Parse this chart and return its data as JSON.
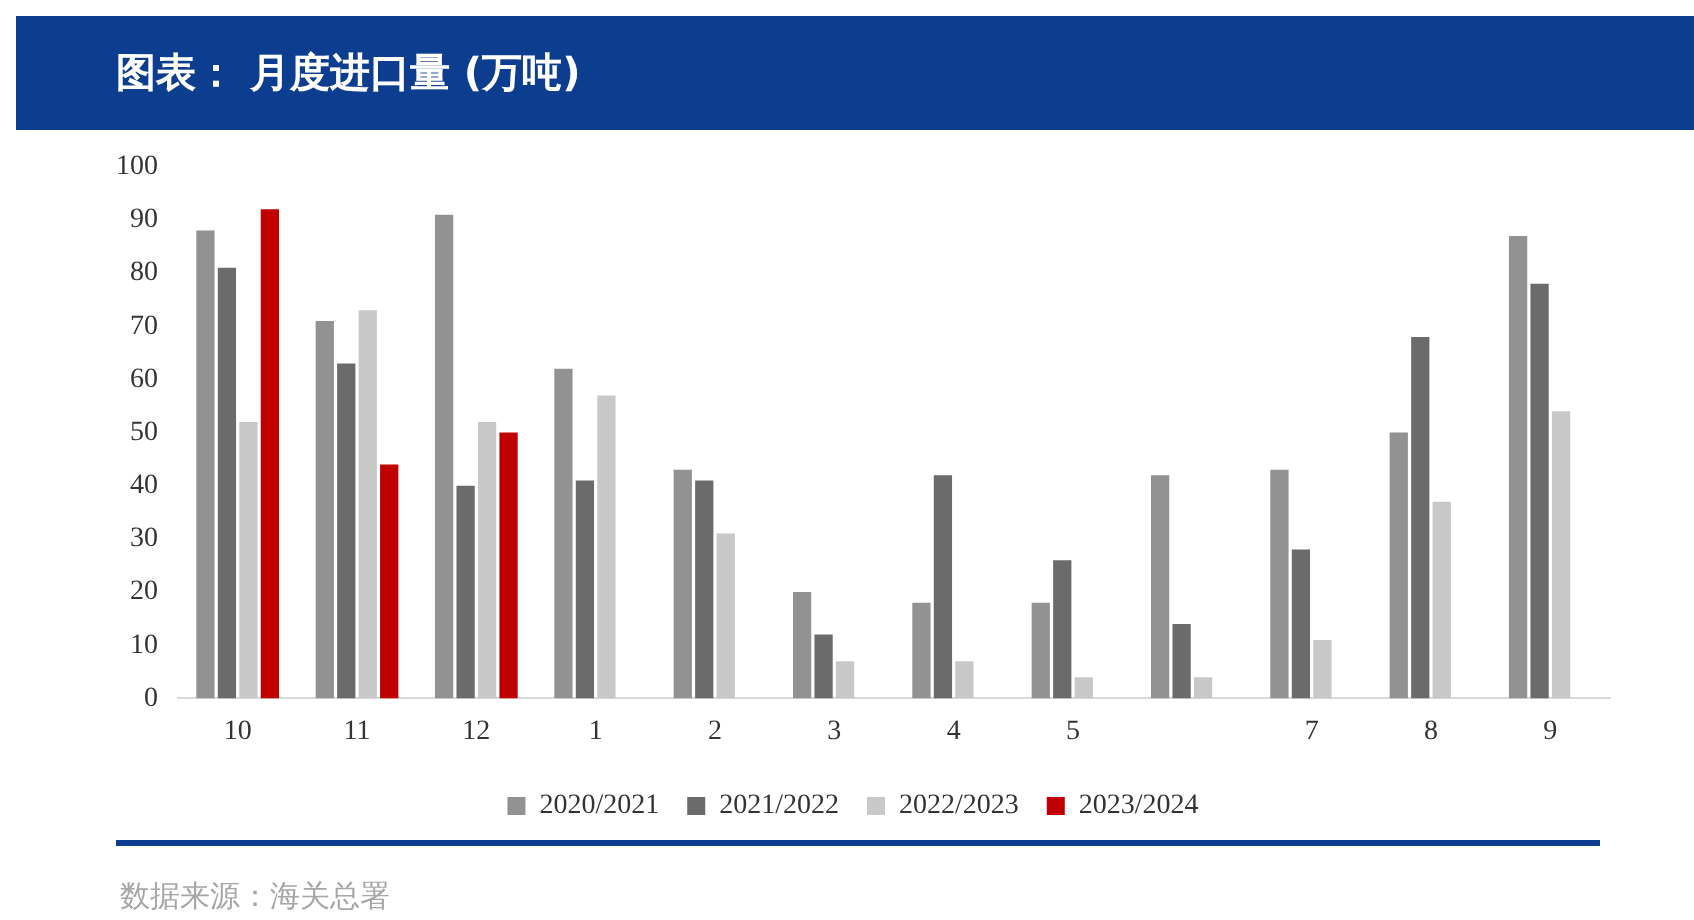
{
  "chart_data": {
    "type": "bar",
    "title": "图表： 月度进口量 (万吨)",
    "categories": [
      "10",
      "11",
      "12",
      "1",
      "2",
      "3",
      "4",
      "5",
      null,
      "7",
      "8",
      "9"
    ],
    "series": [
      {
        "name": "2020/2021",
        "color": "#929292",
        "values": [
          88,
          71,
          91,
          62,
          43,
          20,
          18,
          18,
          42,
          43,
          50,
          87
        ]
      },
      {
        "name": "2021/2022",
        "color": "#6b6b6b",
        "values": [
          81,
          63,
          40,
          41,
          41,
          12,
          42,
          26,
          14,
          28,
          68,
          78
        ]
      },
      {
        "name": "2022/2023",
        "color": "#c8c8c8",
        "values": [
          52,
          73,
          52,
          57,
          31,
          7,
          7,
          4,
          4,
          11,
          37,
          54
        ]
      },
      {
        "name": "2023/2024",
        "color": "#c00000",
        "values": [
          92,
          44,
          50,
          null,
          null,
          null,
          null,
          null,
          null,
          null,
          null,
          null
        ]
      }
    ],
    "ylim": [
      0,
      100
    ],
    "yticks": [
      0,
      10,
      20,
      30,
      40,
      50,
      60,
      70,
      80,
      90,
      100
    ],
    "grid": false,
    "legend": "bottom",
    "annotations": [
      "数据来源：海关总署"
    ]
  }
}
